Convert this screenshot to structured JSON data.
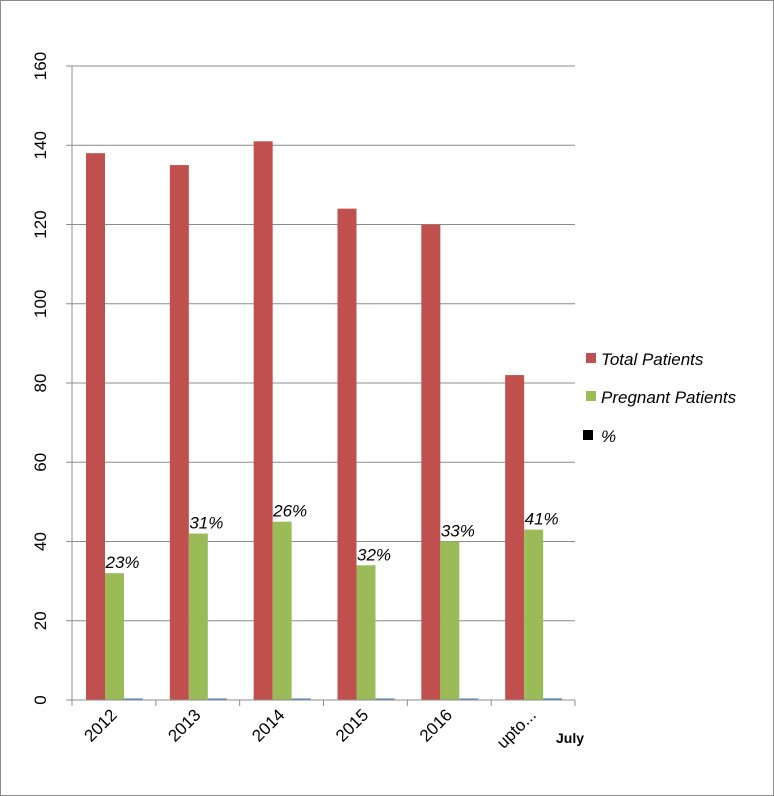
{
  "chart_data": {
    "type": "bar",
    "categories": [
      "2012",
      "2013",
      "2014",
      "2015",
      "2016",
      "upto..."
    ],
    "series": [
      {
        "name": "Total Patients",
        "color": "#c0504d",
        "values": [
          138,
          135,
          141,
          124,
          120,
          82
        ]
      },
      {
        "name": "Pregnant Patients",
        "color": "#9bbb59",
        "values": [
          32,
          42,
          45,
          34,
          40,
          43
        ]
      },
      {
        "name": "%",
        "color": "#4f81bd",
        "values": [
          0.23,
          0.31,
          0.26,
          0.32,
          0.33,
          0.41
        ]
      }
    ],
    "legend_colors": [
      "#c0504d",
      "#9bbb59",
      "#000000"
    ],
    "data_labels": [
      "23%",
      "31%",
      "26%",
      "32%",
      "33%",
      "41%"
    ],
    "yticks": [
      "0",
      "20",
      "40",
      "60",
      "80",
      "100",
      "120",
      "140",
      "160"
    ],
    "ylim": [
      0,
      160
    ],
    "grid": true,
    "legend_position": "right",
    "annotation": "July"
  }
}
